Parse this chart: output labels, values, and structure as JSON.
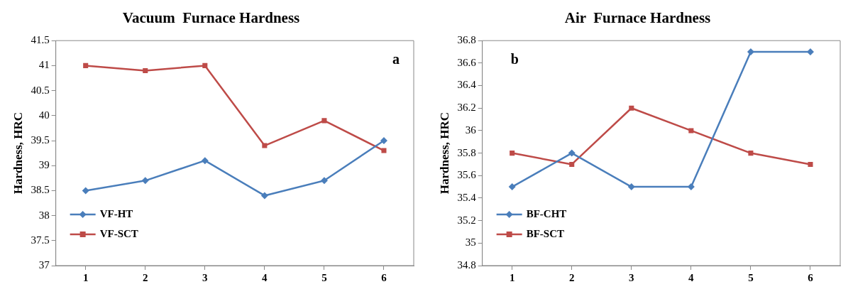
{
  "chart_data": [
    {
      "type": "line",
      "title": "Vacuum  Furnace Hardness",
      "ylabel": "Hardness, HRC",
      "annotations": [
        "a"
      ],
      "categories": [
        "1",
        "2",
        "3",
        "4",
        "5",
        "6"
      ],
      "series": [
        {
          "name": "VF-HT",
          "color": "#4a7ebb",
          "marker": "diamond",
          "values": [
            38.5,
            38.7,
            39.1,
            38.4,
            38.7,
            39.5
          ]
        },
        {
          "name": "VF-SCT",
          "color": "#be4b48",
          "marker": "square",
          "values": [
            41,
            40.9,
            41,
            39.4,
            39.9,
            39.3
          ]
        }
      ],
      "ylim": [
        37,
        41.5
      ],
      "yticks": [
        37,
        37.5,
        38,
        38.5,
        39,
        39.5,
        40,
        40.5,
        41,
        41.5
      ],
      "grid": false,
      "legend": "bottom left"
    },
    {
      "type": "line",
      "title": "Air  Furnace Hardness",
      "ylabel": "Hardness, HRC",
      "annotations": [
        "b"
      ],
      "categories": [
        "1",
        "2",
        "3",
        "4",
        "5",
        "6"
      ],
      "series": [
        {
          "name": "BF-CHT",
          "color": "#4a7ebb",
          "marker": "diamond",
          "values": [
            35.5,
            35.8,
            35.5,
            35.5,
            36.7,
            36.7
          ]
        },
        {
          "name": "BF-SCT",
          "color": "#be4b48",
          "marker": "square",
          "values": [
            35.8,
            35.7,
            36.2,
            36.0,
            35.8,
            35.7
          ]
        }
      ],
      "ylim": [
        34.8,
        36.8
      ],
      "yticks": [
        34.8,
        35,
        35.2,
        35.4,
        35.6,
        35.8,
        36,
        36.2,
        36.4,
        36.6,
        36.8
      ],
      "grid": false,
      "legend": "bottom left"
    }
  ]
}
